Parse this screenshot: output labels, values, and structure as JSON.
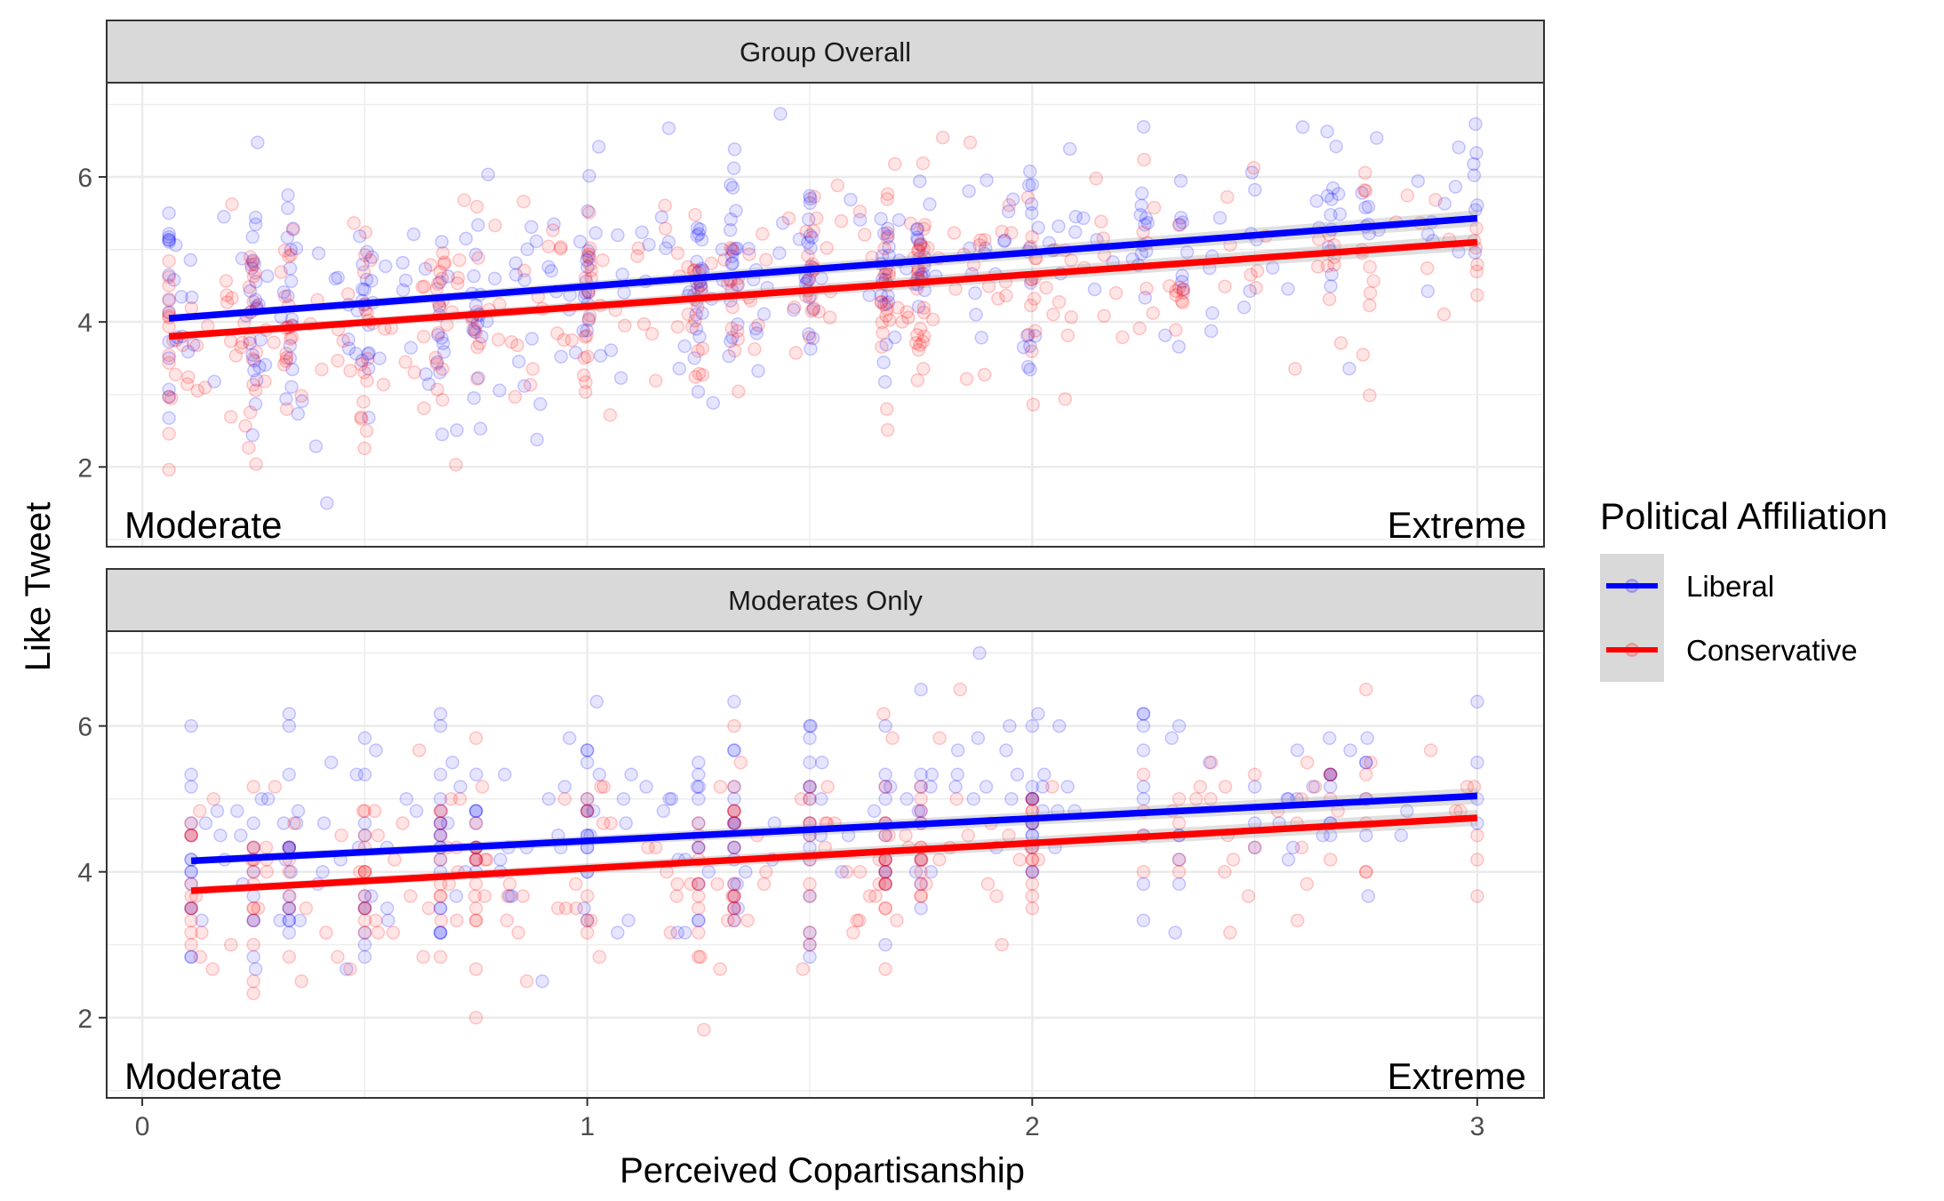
{
  "chart_data": {
    "type": "scatter",
    "xlabel": "Perceived Copartisanship",
    "ylabel": "Like Tweet",
    "xlim": [
      -0.08,
      3.15
    ],
    "ylim": [
      0.9,
      7.3
    ],
    "x_ticks": [
      0,
      1,
      2,
      3
    ],
    "y_ticks": [
      2,
      4,
      6
    ],
    "grid": true,
    "legend": {
      "title": "Political Affiliation",
      "position": "right",
      "entries": [
        {
          "name": "Liberal",
          "color": "#0000ff"
        },
        {
          "name": "Conservative",
          "color": "#ff0000"
        }
      ]
    },
    "colors": {
      "liberal": "#0000ff",
      "conservative": "#ff0000",
      "strip_fill": "#d9d9d9",
      "grid": "#ebebeb"
    },
    "panels": [
      {
        "title": "Group Overall",
        "annotations": {
          "left": "Moderate",
          "right": "Extreme"
        },
        "series": [
          {
            "name": "Liberal",
            "color": "#0000ff",
            "fit": {
              "x": [
                0.06,
                3.0
              ],
              "y": [
                4.05,
                5.43
              ]
            }
          },
          {
            "name": "Conservative",
            "color": "#ff0000",
            "fit": {
              "x": [
                0.06,
                3.0
              ],
              "y": [
                3.8,
                5.1
              ]
            }
          }
        ]
      },
      {
        "title": "Moderates Only",
        "annotations": {
          "left": "Moderate",
          "right": "Extreme"
        },
        "series": [
          {
            "name": "Liberal",
            "color": "#0000ff",
            "fit": {
              "x": [
                0.11,
                3.0
              ],
              "y": [
                4.15,
                5.04
              ]
            }
          },
          {
            "name": "Conservative",
            "color": "#ff0000",
            "fit": {
              "x": [
                0.11,
                3.0
              ],
              "y": [
                3.74,
                4.74
              ]
            }
          }
        ]
      }
    ]
  }
}
